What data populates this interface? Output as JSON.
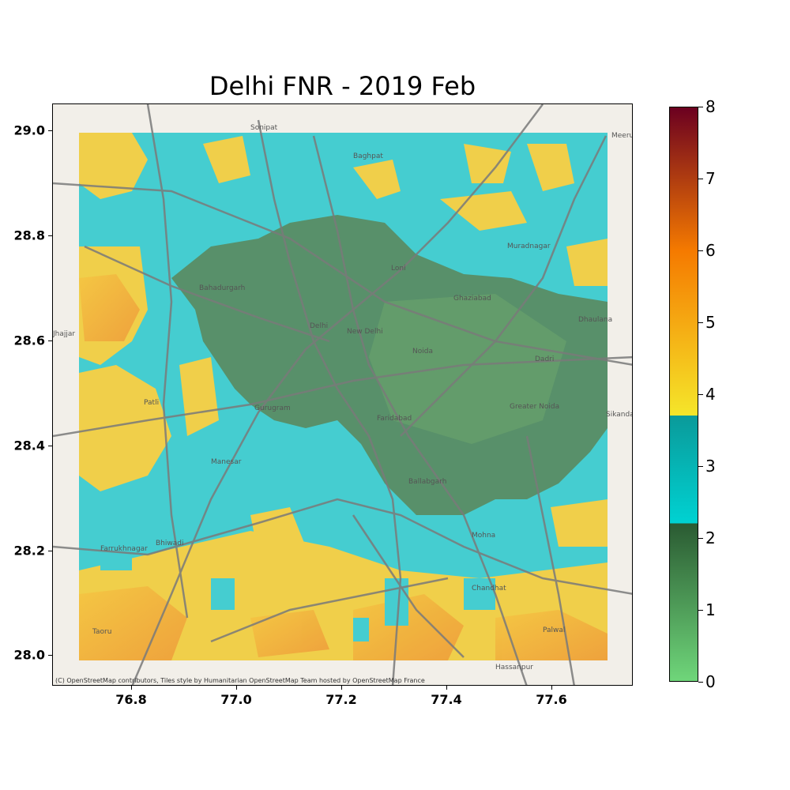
{
  "title": "Delhi FNR - 2019 Feb",
  "attribution": "(C) OpenStreetMap contributors, Tiles style by Humanitarian OpenStreetMap Team hosted by OpenStreetMap France",
  "x_ticks": [
    "76.8",
    "77.0",
    "77.2",
    "77.4",
    "77.6"
  ],
  "y_ticks": [
    "29.0",
    "28.8",
    "28.6",
    "28.4",
    "28.2",
    "28.0"
  ],
  "colorbar": {
    "ticks": [
      "0",
      "1",
      "2",
      "3",
      "4",
      "5",
      "6",
      "7",
      "8"
    ],
    "min": 0,
    "max": 8,
    "stops": [
      {
        "value": 0,
        "color": "#6fd67a"
      },
      {
        "value": 2.2,
        "color": "#2a5a32"
      },
      {
        "value": 2.2,
        "color": "#00d2d2"
      },
      {
        "value": 3.7,
        "color": "#0a9a9a"
      },
      {
        "value": 3.7,
        "color": "#f5e62a"
      },
      {
        "value": 6,
        "color": "#f57a00"
      },
      {
        "value": 8,
        "color": "#6b0020"
      }
    ]
  },
  "place_labels": [
    "Sonipat",
    "Meeru",
    "Baghpat",
    "Bahadurgarh",
    "Delhi",
    "New Delhi",
    "Loni",
    "Ghaziabad",
    "Noida",
    "Muradnagar",
    "Dhaulana",
    "Jhajjar",
    "Gurugram",
    "Faridabad",
    "Ballabgarh",
    "Greater Noida",
    "Sikanda",
    "Manesar",
    "Mohna",
    "Bhiwadi",
    "Chandhat",
    "Hassanpur",
    "Patli",
    "Farrukhnagar",
    "Taoru",
    "Palwal",
    "Dadri"
  ],
  "map": {
    "data_extent_lon": [
      76.7,
      77.7
    ],
    "data_extent_lat": [
      28.0,
      29.0
    ]
  }
}
